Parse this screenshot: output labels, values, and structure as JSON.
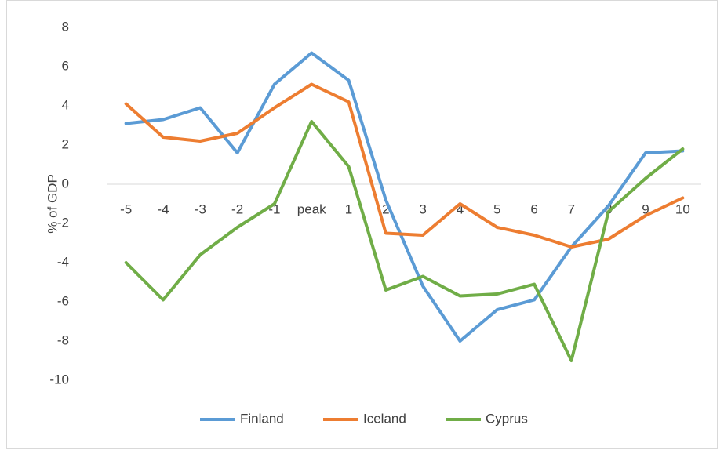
{
  "chart_data": {
    "type": "line",
    "y_label": "% of GDP",
    "categories": [
      "-5",
      "-4",
      "-3",
      "-2",
      "-1",
      "peak",
      "1",
      "2",
      "3",
      "4",
      "5",
      "6",
      "7",
      "8",
      "9",
      "10"
    ],
    "series": [
      {
        "name": "Finland",
        "color": "#5b9bd5",
        "values": [
          3.1,
          3.3,
          3.9,
          1.6,
          5.1,
          6.7,
          5.3,
          -0.8,
          -5.2,
          -8.0,
          -6.4,
          -5.9,
          -3.2,
          -1.1,
          1.6,
          1.7
        ]
      },
      {
        "name": "Iceland",
        "color": "#ed7d31",
        "values": [
          4.1,
          2.4,
          2.2,
          2.6,
          3.9,
          5.1,
          4.2,
          -2.5,
          -2.6,
          -1.0,
          -2.2,
          -2.6,
          -3.2,
          -2.8,
          -1.6,
          -0.7
        ]
      },
      {
        "name": "Cyprus",
        "color": "#70ad47",
        "values": [
          -4.0,
          -5.9,
          -3.6,
          -2.2,
          -1.0,
          3.2,
          0.9,
          -5.4,
          -4.7,
          -5.7,
          -5.6,
          -5.1,
          -9.0,
          -1.4,
          0.3,
          1.8
        ]
      }
    ],
    "ylim": [
      -10,
      8
    ],
    "yticks": [
      -10,
      -8,
      -6,
      -4,
      -2,
      0,
      2,
      4,
      6,
      8
    ],
    "grid": false,
    "legend": "bottom"
  }
}
